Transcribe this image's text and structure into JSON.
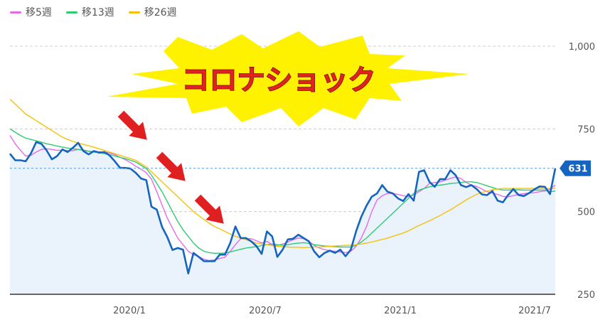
{
  "chart_data": {
    "type": "line",
    "legend_position": "top-left",
    "grid": true,
    "colors": {
      "price_line": "#1565c0",
      "area_fill": "#eaf2fc",
      "grid": "#cccccc",
      "last_marker": "#1565c0",
      "ma5": "#e56be6",
      "ma13": "#2ecc71",
      "ma26": "#f4c20d",
      "banner_fill": "#fff200",
      "arrow": "#e02020"
    },
    "x_ticks": [
      "2020/1",
      "2020/7",
      "2021/1",
      "2021/7"
    ],
    "y_ticks": [
      "1,000",
      "750",
      "500",
      "250"
    ],
    "ylim": [
      250,
      1000
    ],
    "last_value_label": "631",
    "annotation": "コロナショック",
    "price": [
      675,
      655,
      655,
      652,
      676,
      710,
      705,
      685,
      658,
      668,
      688,
      680,
      693,
      708,
      683,
      673,
      683,
      678,
      680,
      670,
      652,
      632,
      632,
      630,
      617,
      600,
      595,
      515,
      506,
      454,
      423,
      384,
      390,
      385,
      313,
      375,
      363,
      350,
      350,
      350,
      370,
      370,
      405,
      455,
      420,
      420,
      410,
      396,
      372,
      440,
      425,
      363,
      385,
      416,
      418,
      430,
      420,
      410,
      380,
      362,
      375,
      382,
      375,
      385,
      365,
      385,
      440,
      484,
      518,
      545,
      555,
      580,
      560,
      555,
      540,
      532,
      553,
      533,
      620,
      625,
      590,
      575,
      598,
      598,
      625,
      610,
      580,
      574,
      580,
      568,
      552,
      550,
      562,
      533,
      528,
      550,
      568,
      550,
      547,
      556,
      567,
      576,
      575,
      553,
      631
    ],
    "series": [
      {
        "name": "移5週",
        "values": [
          730,
          705,
          685,
          668,
          670,
          680,
          688,
          690,
          688,
          685,
          686,
          684,
          684,
          688,
          685,
          682,
          682,
          681,
          680,
          677,
          672,
          664,
          657,
          648,
          637,
          628,
          617,
          598,
          560,
          520,
          480,
          450,
          420,
          400,
          380,
          370,
          364,
          356,
          352,
          354,
          358,
          362,
          380,
          400,
          418,
          418,
          418,
          412,
          405,
          410,
          400,
          398,
          402,
          408,
          415,
          420,
          418,
          410,
          398,
          390,
          385,
          382,
          380,
          378,
          376,
          380,
          395,
          420,
          455,
          500,
          535,
          548,
          555,
          555,
          552,
          548,
          545,
          550,
          560,
          570,
          585,
          588,
          590,
          595,
          600,
          605,
          600,
          588,
          580,
          576,
          568,
          560,
          556,
          552,
          546,
          545,
          548,
          552,
          554,
          556,
          557,
          560,
          562,
          568,
          580
        ]
      },
      {
        "name": "移13週",
        "values": [
          750,
          740,
          730,
          722,
          718,
          714,
          710,
          705,
          702,
          698,
          695,
          692,
          690,
          688,
          686,
          683,
          680,
          678,
          675,
          672,
          668,
          664,
          660,
          655,
          650,
          640,
          630,
          610,
          585,
          560,
          530,
          500,
          470,
          445,
          425,
          405,
          390,
          380,
          376,
          374,
          374,
          375,
          378,
          382,
          386,
          390,
          392,
          394,
          397,
          400,
          402,
          400,
          398,
          400,
          403,
          405,
          406,
          404,
          400,
          398,
          396,
          395,
          394,
          393,
          393,
          393,
          398,
          408,
          420,
          435,
          450,
          465,
          480,
          495,
          510,
          525,
          540,
          555,
          565,
          570,
          575,
          578,
          580,
          582,
          585,
          586,
          588,
          590,
          590,
          588,
          583,
          578,
          573,
          568,
          565,
          565,
          566,
          566,
          565,
          565,
          565,
          565,
          565,
          560,
          562
        ]
      },
      {
        "name": "移26週",
        "values": [
          840,
          825,
          810,
          795,
          785,
          775,
          765,
          755,
          745,
          735,
          725,
          718,
          712,
          707,
          703,
          699,
          695,
          690,
          685,
          680,
          675,
          670,
          665,
          660,
          655,
          645,
          635,
          620,
          605,
          590,
          575,
          560,
          545,
          530,
          515,
          500,
          488,
          476,
          465,
          455,
          448,
          440,
          432,
          425,
          420,
          415,
          410,
          405,
          402,
          400,
          397,
          395,
          394,
          393,
          392,
          392,
          391,
          392,
          393,
          393,
          394,
          395,
          396,
          397,
          398,
          398,
          400,
          402,
          405,
          408,
          412,
          416,
          420,
          425,
          430,
          435,
          442,
          450,
          458,
          465,
          472,
          480,
          488,
          497,
          505,
          515,
          525,
          535,
          544,
          552,
          558,
          562,
          566,
          568,
          570,
          570,
          570,
          570,
          570,
          570,
          570,
          570,
          570,
          570,
          570
        ]
      }
    ]
  }
}
